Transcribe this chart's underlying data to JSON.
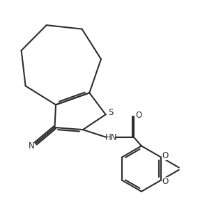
{
  "bg_color": "#ffffff",
  "line_color": "#2d2d2d",
  "line_width": 1.5,
  "figsize": [
    2.97,
    3.1
  ],
  "dpi": 100,
  "S_label": "S",
  "N_label": "N",
  "HN_label": "HN",
  "O_label": "O",
  "font_size": 8.5
}
